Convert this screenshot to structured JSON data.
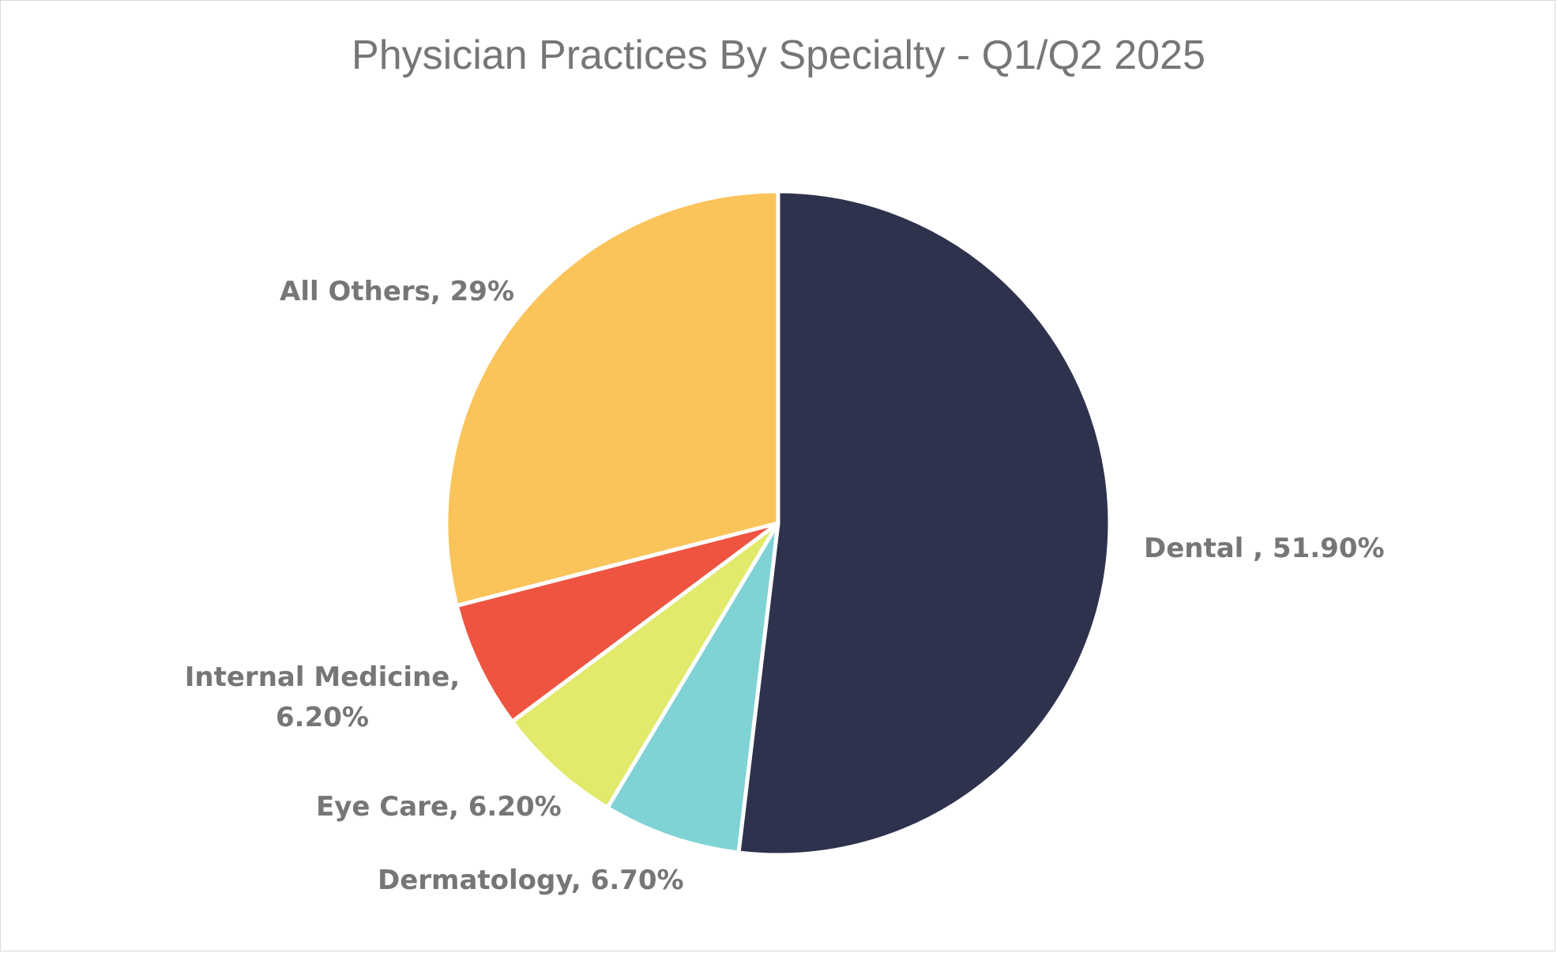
{
  "chart_data": {
    "type": "pie",
    "title": "Physician Practices By Specialty - Q1/Q2 2025",
    "slices": [
      {
        "name": "Dental",
        "value": 51.9,
        "label_lines": [
          "Dental , 51.90%"
        ],
        "color": "#2e324d"
      },
      {
        "name": "Dermatology",
        "value": 6.7,
        "label_lines": [
          "Dermatology, 6.70%"
        ],
        "color": "#7fd3d4"
      },
      {
        "name": "Eye Care",
        "value": 6.2,
        "label_lines": [
          "Eye Care, 6.20%"
        ],
        "color": "#e2e96b"
      },
      {
        "name": "Internal Medicine",
        "value": 6.2,
        "label_lines": [
          "Internal Medicine,",
          "6.20%"
        ],
        "color": "#ee5440"
      },
      {
        "name": "All Others",
        "value": 29,
        "label_lines": [
          "All Others, 29%"
        ],
        "color": "#fac45b"
      }
    ]
  }
}
